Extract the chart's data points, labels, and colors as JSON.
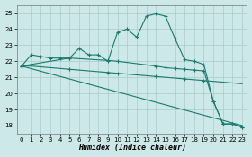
{
  "xlabel": "Humidex (Indice chaleur)",
  "xlim": [
    -0.5,
    23.5
  ],
  "ylim": [
    17.5,
    25.5
  ],
  "yticks": [
    18,
    19,
    20,
    21,
    22,
    23,
    24,
    25
  ],
  "xticks": [
    0,
    1,
    2,
    3,
    4,
    5,
    6,
    7,
    8,
    9,
    10,
    11,
    12,
    13,
    14,
    15,
    16,
    17,
    18,
    19,
    20,
    21,
    22,
    23
  ],
  "bg_color": "#cce8e8",
  "line_color": "#1a7a6e",
  "grid_color": "#aacccc",
  "line1_x": [
    0,
    1,
    2,
    3,
    4,
    5,
    6,
    7,
    8,
    9,
    10,
    11,
    12,
    13,
    14,
    15,
    16,
    17,
    18,
    19,
    20,
    21,
    22,
    23
  ],
  "line1_y": [
    21.7,
    22.4,
    22.3,
    22.2,
    22.2,
    22.2,
    22.8,
    22.4,
    22.4,
    22.0,
    23.8,
    24.0,
    23.5,
    24.8,
    24.95,
    24.8,
    23.4,
    22.1,
    22.0,
    21.8,
    19.5,
    18.1,
    18.1,
    17.9
  ],
  "line2_x": [
    0,
    1,
    2,
    3,
    4,
    5,
    6,
    7,
    8,
    9,
    10,
    11,
    12,
    13,
    14,
    15,
    16,
    17,
    18,
    19,
    20,
    21,
    22,
    23
  ],
  "line2_y": [
    21.7,
    21.7,
    21.65,
    21.6,
    21.55,
    21.5,
    21.45,
    21.4,
    21.35,
    21.3,
    21.25,
    21.2,
    21.15,
    21.1,
    21.05,
    21.0,
    20.95,
    20.9,
    20.85,
    20.8,
    20.75,
    20.7,
    20.65,
    20.6
  ],
  "line3_x": [
    0,
    23
  ],
  "line3_y": [
    21.7,
    18.0
  ],
  "line4_x": [
    0,
    5,
    9,
    10,
    14,
    15,
    16,
    17,
    18,
    19,
    20,
    21,
    22,
    23
  ],
  "line4_y": [
    21.7,
    22.2,
    22.05,
    22.0,
    21.7,
    21.6,
    21.55,
    21.5,
    21.45,
    21.4,
    19.5,
    18.1,
    18.1,
    17.9
  ]
}
